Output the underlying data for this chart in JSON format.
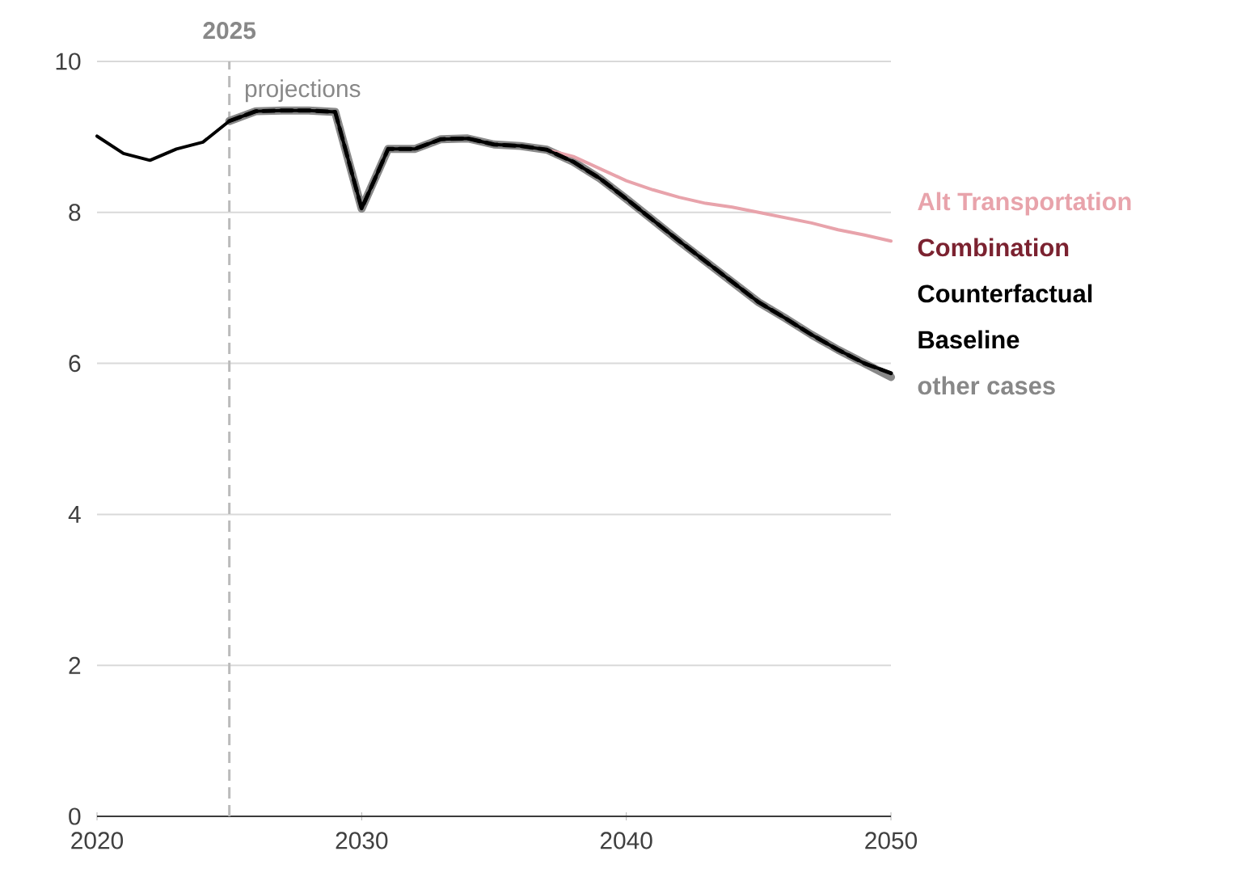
{
  "chart_data": {
    "type": "line",
    "x": [
      2020,
      2021,
      2022,
      2023,
      2024,
      2025,
      2026,
      2027,
      2028,
      2029,
      2030,
      2031,
      2032,
      2033,
      2034,
      2035,
      2036,
      2037,
      2038,
      2039,
      2040,
      2041,
      2042,
      2043,
      2044,
      2045,
      2046,
      2047,
      2048,
      2049,
      2050
    ],
    "xlim": [
      2020,
      2050
    ],
    "ylim": [
      0,
      10
    ],
    "xticks": [
      2020,
      2030,
      2040,
      2050
    ],
    "yticks": [
      0,
      2,
      4,
      6,
      8,
      10
    ],
    "grid": "y",
    "legend": "right",
    "marker": "none",
    "series": [
      {
        "name": "Alt Transportation",
        "color": "#e8a3ab",
        "line_style": "solid",
        "x": [
          2037,
          2038,
          2039,
          2040,
          2041,
          2042,
          2043,
          2044,
          2045,
          2046,
          2047,
          2048,
          2049,
          2050
        ],
        "values": [
          8.83,
          8.74,
          8.58,
          8.42,
          8.3,
          8.2,
          8.12,
          8.07,
          8.0,
          7.93,
          7.86,
          7.77,
          7.7,
          7.62
        ]
      },
      {
        "name": "Combination",
        "color": "#7b2230",
        "values": [
          null,
          null,
          null,
          null,
          null,
          null,
          null,
          null,
          null,
          null,
          null,
          null,
          null,
          null,
          null,
          null,
          null,
          null,
          null,
          null,
          null,
          null,
          null,
          null,
          null,
          null,
          null,
          null,
          null,
          null,
          null
        ]
      },
      {
        "name": "Counterfactual",
        "color": "#000000",
        "line_style": "solid",
        "values": [
          9.01,
          8.78,
          8.69,
          8.84,
          8.93,
          9.21,
          9.34,
          9.35,
          9.35,
          9.33,
          8.05,
          8.84,
          8.84,
          8.97,
          8.98,
          8.9,
          8.88,
          8.83,
          8.67,
          8.45,
          8.18,
          7.9,
          7.62,
          7.35,
          7.08,
          6.81,
          6.6,
          6.38,
          6.18,
          6.0,
          5.87
        ]
      },
      {
        "name": "Baseline",
        "color": "#000000",
        "line_style": "dashed",
        "x": [
          2025,
          2026,
          2027,
          2028,
          2029,
          2030,
          2031,
          2032,
          2033,
          2034,
          2035,
          2036,
          2037,
          2038,
          2039,
          2040,
          2041,
          2042,
          2043,
          2044,
          2045,
          2046,
          2047,
          2048,
          2049,
          2050
        ],
        "values": [
          9.21,
          9.34,
          9.35,
          9.35,
          9.33,
          8.05,
          8.84,
          8.84,
          8.97,
          8.98,
          8.9,
          8.88,
          8.83,
          8.67,
          8.45,
          8.18,
          7.9,
          7.62,
          7.35,
          7.08,
          6.81,
          6.6,
          6.38,
          6.18,
          6.0,
          5.87
        ]
      },
      {
        "name": "other cases",
        "color": "#888888",
        "line_style": "solid",
        "x": [
          2025,
          2026,
          2027,
          2028,
          2029,
          2030,
          2031,
          2032,
          2033,
          2034,
          2035,
          2036,
          2037,
          2038,
          2039,
          2040,
          2041,
          2042,
          2043,
          2044,
          2045,
          2046,
          2047,
          2048,
          2049,
          2050
        ],
        "values": [
          9.21,
          9.34,
          9.35,
          9.35,
          9.33,
          8.05,
          8.84,
          8.84,
          8.97,
          8.98,
          8.9,
          8.88,
          8.83,
          8.67,
          8.45,
          8.18,
          7.9,
          7.62,
          7.35,
          7.08,
          6.81,
          6.6,
          6.38,
          6.18,
          6.0,
          5.82
        ]
      }
    ],
    "ref_lines": [
      {
        "axis": "x",
        "value": 2025,
        "label": "2025",
        "color": "#bbbbbb",
        "line_style": "dashed"
      }
    ],
    "annotations": [
      "projections"
    ]
  }
}
